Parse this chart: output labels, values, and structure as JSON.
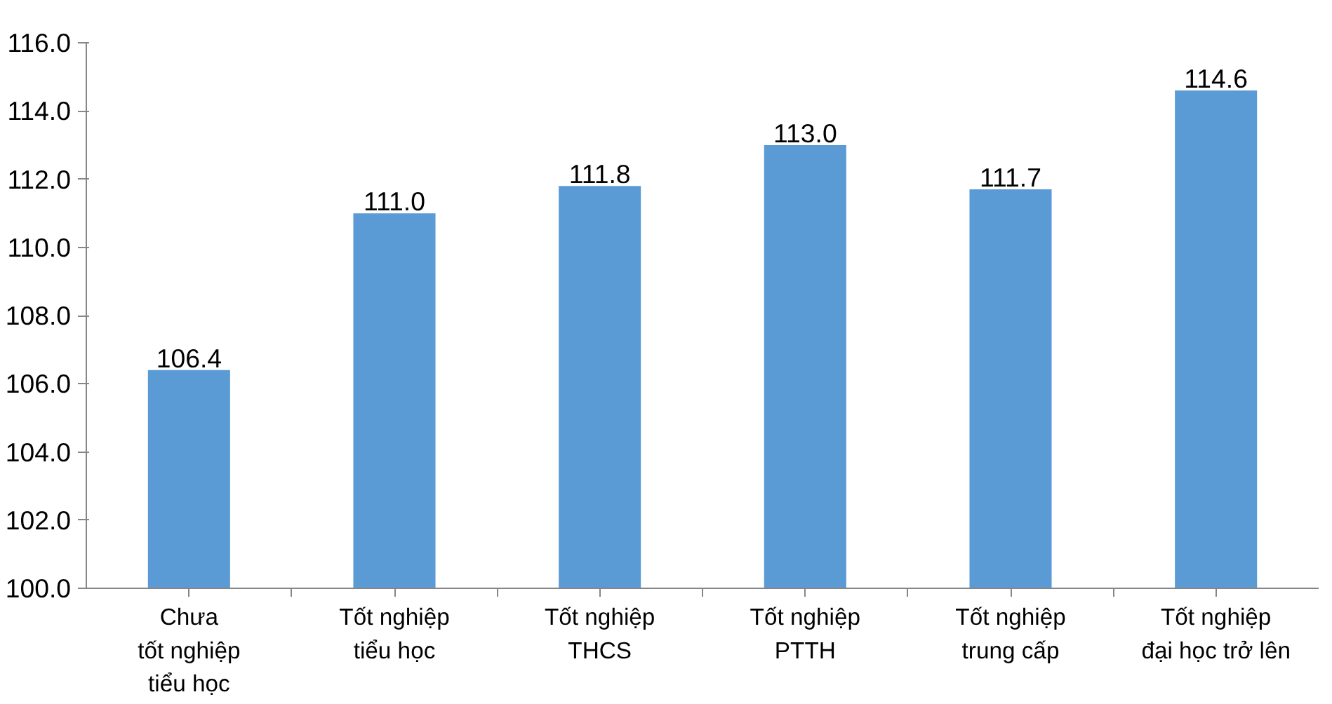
{
  "chart_data": {
    "type": "bar",
    "categories": [
      "Chưa\ntốt nghiệp\ntiểu học",
      "Tốt nghiệp\ntiểu học",
      "Tốt nghiệp\nTHCS",
      "Tốt nghiệp\nPTTH",
      "Tốt nghiệp\ntrung cấp",
      "Tốt nghiệp\nđại học trở lên"
    ],
    "values": [
      106.4,
      111.0,
      111.8,
      113.0,
      111.7,
      114.6
    ],
    "value_labels": [
      "106.4",
      "111.0",
      "111.8",
      "113.0",
      "111.7",
      "114.6"
    ],
    "color": "#5b9bd5",
    "ylim": [
      100,
      116
    ],
    "yticks": [
      {
        "value": 100,
        "label": "100.0"
      },
      {
        "value": 102,
        "label": "102.0"
      },
      {
        "value": 104,
        "label": "104.0"
      },
      {
        "value": 106,
        "label": "106.0"
      },
      {
        "value": 108,
        "label": "108.0"
      },
      {
        "value": 110,
        "label": "110.0"
      },
      {
        "value": 112,
        "label": "112.0"
      },
      {
        "value": 114,
        "label": "114.0"
      },
      {
        "value": 116,
        "label": "116.0"
      }
    ],
    "grid": false
  }
}
